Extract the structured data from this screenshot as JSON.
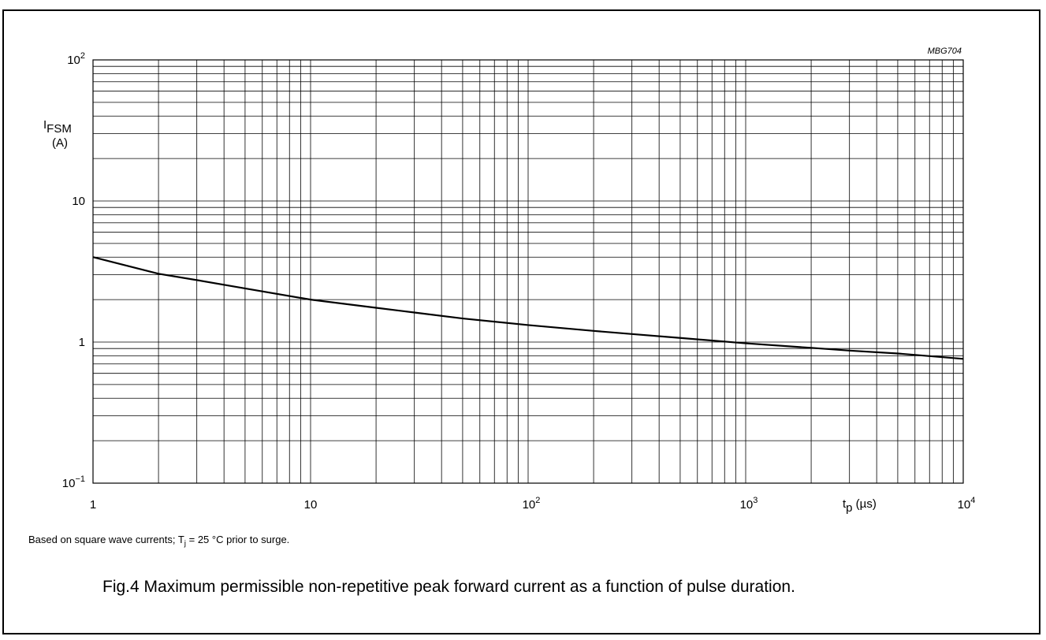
{
  "figure_code": "MBG704",
  "note": {
    "prefix": "Based on square wave currents; T",
    "sub": "j",
    "suffix": " = 25 °C prior to surge."
  },
  "caption": "Fig.4  Maximum permissible non-repetitive peak forward current as a function of pulse duration.",
  "chart_data": {
    "type": "line",
    "x_scale": "log",
    "y_scale": "log",
    "xlim": [
      1,
      10000
    ],
    "ylim": [
      0.1,
      100
    ],
    "grid": true,
    "xlabel": {
      "main": "t",
      "sub": "p",
      "unit": " (µs)"
    },
    "ylabel": {
      "main": "I",
      "sub": "FSM",
      "unit": "(A)"
    },
    "x_ticks": [
      {
        "value": 1,
        "base": "1",
        "exp": ""
      },
      {
        "value": 10,
        "base": "10",
        "exp": ""
      },
      {
        "value": 100,
        "base": "10",
        "exp": "2"
      },
      {
        "value": 1000,
        "base": "10",
        "exp": "3"
      },
      {
        "value": 10000,
        "base": "10",
        "exp": "4"
      }
    ],
    "y_ticks": [
      {
        "value": 0.1,
        "base": "10",
        "exp": "−1"
      },
      {
        "value": 1,
        "base": "1",
        "exp": ""
      },
      {
        "value": 10,
        "base": "10",
        "exp": ""
      },
      {
        "value": 100,
        "base": "10",
        "exp": "2"
      }
    ],
    "series": [
      {
        "color": "#000000",
        "x": [
          1,
          2,
          3,
          5,
          10,
          20,
          30,
          50,
          100,
          200,
          300,
          500,
          1000,
          2000,
          3000,
          5000,
          10000
        ],
        "y": [
          4.0,
          3.05,
          2.75,
          2.4,
          2.0,
          1.75,
          1.62,
          1.47,
          1.32,
          1.2,
          1.14,
          1.07,
          0.98,
          0.91,
          0.87,
          0.83,
          0.76
        ]
      }
    ]
  }
}
